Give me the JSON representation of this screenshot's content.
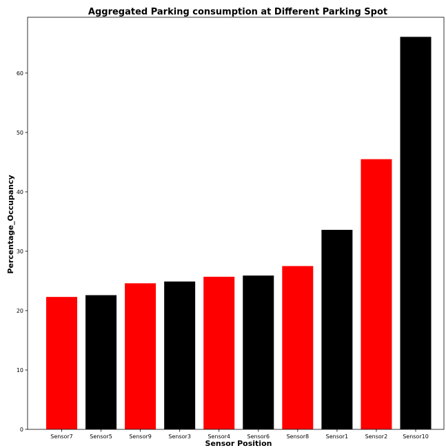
{
  "chart_data": {
    "type": "bar",
    "title": "Aggregated Parking consumption at Different Parking Spot",
    "xlabel": "Sensor Position",
    "ylabel": "Percentage_Occupancy",
    "categories": [
      "Sensor7",
      "Sensor5",
      "Sensor9",
      "Sensor3",
      "Sensor4",
      "Sensor6",
      "Sensor8",
      "Sensor1",
      "Sensor2",
      "Sensor10"
    ],
    "values": [
      22.3,
      22.6,
      24.6,
      24.9,
      25.7,
      25.9,
      27.5,
      33.6,
      45.5,
      66.1
    ],
    "bar_colors": [
      "#ff0000",
      "#000000",
      "#ff0000",
      "#000000",
      "#ff0000",
      "#000000",
      "#ff0000",
      "#000000",
      "#ff0000",
      "#000000"
    ],
    "yticks": [
      0,
      10,
      20,
      30,
      40,
      50,
      60
    ],
    "ylim": [
      0,
      69.4
    ],
    "grid": false,
    "legend": "none"
  }
}
